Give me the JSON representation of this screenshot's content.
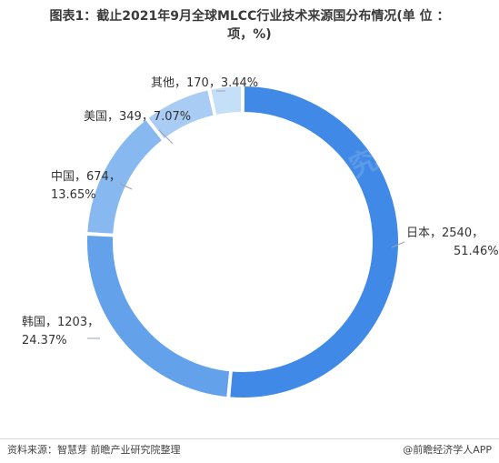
{
  "title": {
    "line1": "图表1：截止2021年9月全球MLCC行业技术来源国分布情况(单 位 ：",
    "line2": "项，%)"
  },
  "chart_data": {
    "type": "pie",
    "title": "图表1：截止2021年9月全球MLCC行业技术来源国分布情况(单 位 ：项，%)",
    "donut": true,
    "slices": [
      {
        "label": "日本",
        "value": 2540,
        "percent": 51.46,
        "color": "#4089e6",
        "text_line1": "日本，2540，",
        "text_line2": "51.46%"
      },
      {
        "label": "韩国",
        "value": 1203,
        "percent": 24.37,
        "color": "#63a2eb",
        "text_line1": "韩国，1203，",
        "text_line2": "24.37%"
      },
      {
        "label": "中国",
        "value": 674,
        "percent": 13.65,
        "color": "#87b9f0",
        "text_line1": "中国，674，",
        "text_line2": "13.65%"
      },
      {
        "label": "美国",
        "value": 349,
        "percent": 7.07,
        "color": "#a8ccf4",
        "text_line1": "美国，349，7.07%",
        "text_line2": ""
      },
      {
        "label": "其他",
        "value": 170,
        "percent": 3.44,
        "color": "#c6dff8",
        "text_line1": "其他，170，3.44%",
        "text_line2": ""
      }
    ]
  },
  "watermark": "前瞻产业研究院",
  "footer": {
    "source": "资料来源：智慧芽 前瞻产业研究院整理",
    "brand": "@前瞻经济学人APP"
  }
}
